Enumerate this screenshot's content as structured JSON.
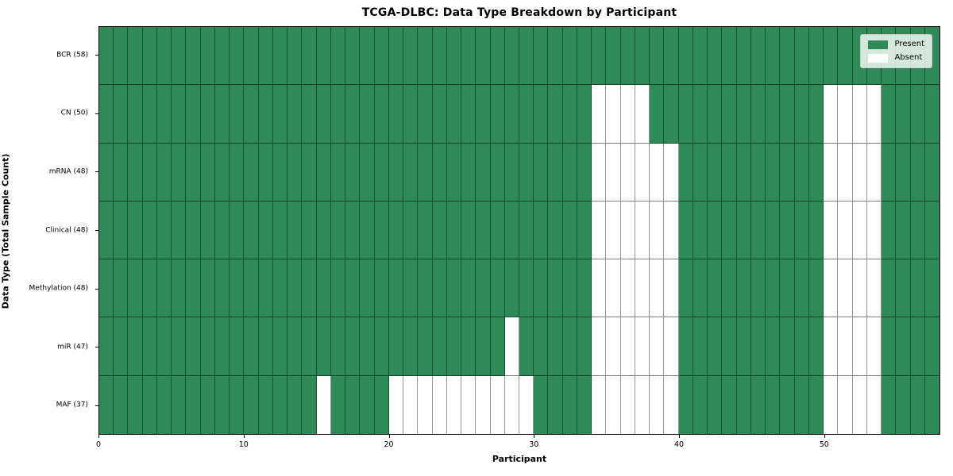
{
  "figure": {
    "title": "TCGA-DLBC: Data Type Breakdown by Participant",
    "xlabel": "Participant",
    "ylabel": "Data Type (Total Sample Count)"
  },
  "legend": {
    "items": [
      {
        "label": "Present",
        "color": "#2e8b57"
      },
      {
        "label": "Absent",
        "color": "#ffffff"
      }
    ]
  },
  "chart_data": {
    "type": "heatmap",
    "title": "TCGA-DLBC: Data Type Breakdown by Participant",
    "xlabel": "Participant",
    "ylabel": "Data Type (Total Sample Count)",
    "n_participants": 58,
    "x_ticks": [
      0,
      10,
      20,
      30,
      40,
      50
    ],
    "xlim": [
      0,
      58
    ],
    "grid": true,
    "legend_position": "upper right",
    "cell_states": [
      "Present",
      "Absent"
    ],
    "colors": {
      "present": "#2e8b57",
      "absent": "#ffffff",
      "grid_line": "rgba(0,0,0,0.45)",
      "border": "#000000"
    },
    "rows": [
      {
        "label": "BCR (58)",
        "data_type": "BCR",
        "total_samples": 58,
        "absent_participants": []
      },
      {
        "label": "CN (50)",
        "data_type": "CN",
        "total_samples": 50,
        "absent_participants": [
          34,
          35,
          36,
          37,
          50,
          51,
          52,
          53
        ]
      },
      {
        "label": "mRNA (48)",
        "data_type": "mRNA",
        "total_samples": 48,
        "absent_participants": [
          34,
          35,
          36,
          37,
          38,
          39,
          50,
          51,
          52,
          53
        ]
      },
      {
        "label": "Clinical (48)",
        "data_type": "Clinical",
        "total_samples": 48,
        "absent_participants": [
          34,
          35,
          36,
          37,
          38,
          39,
          50,
          51,
          52,
          53
        ]
      },
      {
        "label": "Methylation (48)",
        "data_type": "Methylation",
        "total_samples": 48,
        "absent_participants": [
          34,
          35,
          36,
          37,
          38,
          39,
          50,
          51,
          52,
          53
        ]
      },
      {
        "label": "miR (47)",
        "data_type": "miR",
        "total_samples": 47,
        "absent_participants": [
          28,
          34,
          35,
          36,
          37,
          38,
          39,
          50,
          51,
          52,
          53
        ]
      },
      {
        "label": "MAF (37)",
        "data_type": "MAF",
        "total_samples": 37,
        "absent_participants": [
          15,
          20,
          21,
          22,
          23,
          24,
          25,
          26,
          27,
          28,
          29,
          34,
          35,
          36,
          37,
          38,
          39,
          50,
          51,
          52,
          53
        ]
      }
    ]
  }
}
